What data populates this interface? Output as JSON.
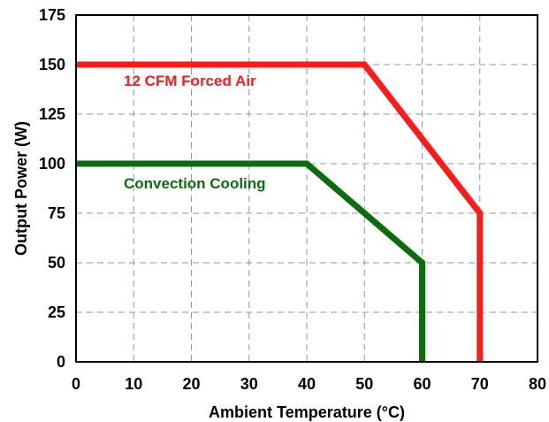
{
  "chart_data": {
    "type": "line",
    "title": "",
    "xlabel": "Ambient Temperature (°C)",
    "ylabel": "Output Power (W)",
    "xlim": [
      0,
      80
    ],
    "ylim": [
      0,
      175
    ],
    "xticks": [
      0,
      10,
      20,
      30,
      40,
      50,
      60,
      70,
      80
    ],
    "yticks": [
      0,
      25,
      50,
      75,
      100,
      125,
      150,
      175
    ],
    "xtick_labels": [
      "0",
      "10",
      "20",
      "30",
      "40",
      "50",
      "60",
      "70",
      "80"
    ],
    "ytick_labels": [
      "0",
      "25",
      "50",
      "75",
      "100",
      "125",
      "150",
      "175"
    ],
    "grid": true,
    "grid_style": "dashed",
    "legend": "inline-labels",
    "series": [
      {
        "name": "12 CFM Forced Air",
        "color": "#ff1a1a",
        "x": [
          0,
          50,
          70,
          70
        ],
        "y": [
          150,
          150,
          75,
          0
        ]
      },
      {
        "name": "Convection Cooling",
        "color": "#0b6e0b",
        "x": [
          0,
          40,
          60,
          60
        ],
        "y": [
          100,
          100,
          50,
          0
        ]
      }
    ]
  }
}
